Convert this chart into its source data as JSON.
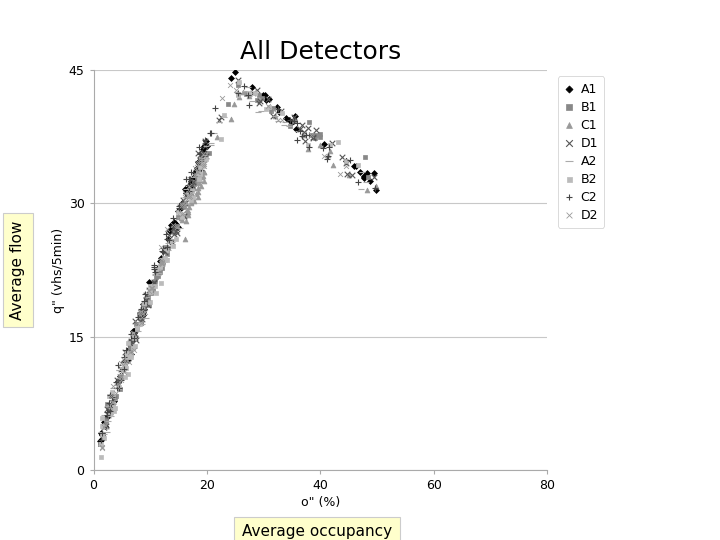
{
  "title": "All Detectors",
  "xlabel": "o\" (%)",
  "ylabel": "q\" (vhs/5min)",
  "ylabel_outer": "Average flow",
  "xlabel_outer": "Average occupancy",
  "xlim": [
    0,
    80
  ],
  "ylim": [
    0,
    45
  ],
  "xticks": [
    0,
    20,
    40,
    60,
    80
  ],
  "yticks": [
    0,
    15,
    30,
    45
  ],
  "background_color": "#ffffff",
  "grid_color": "#c8c8c8",
  "title_fontsize": 18,
  "axis_label_fontsize": 9,
  "outer_label_fontsize": 11,
  "tick_fontsize": 9,
  "legend_fontsize": 9,
  "series": [
    {
      "label": "A1",
      "marker": "D",
      "color": "#000000",
      "ms": 3,
      "mew": 0.5,
      "occ_range": [
        1,
        50
      ],
      "noise": 0.5,
      "n": 100,
      "occ_crit": 25,
      "q_max": 44.5,
      "q_min": 32
    },
    {
      "label": "B1",
      "marker": "s",
      "color": "#888888",
      "ms": 3.5,
      "mew": 0.5,
      "occ_range": [
        1,
        50
      ],
      "noise": 0.6,
      "n": 90,
      "occ_crit": 25,
      "q_max": 43.5,
      "q_min": 33
    },
    {
      "label": "C1",
      "marker": "^",
      "color": "#999999",
      "ms": 3.5,
      "mew": 0.5,
      "occ_range": [
        15,
        50
      ],
      "noise": 0.7,
      "n": 55,
      "occ_crit": 26,
      "q_max": 43.0,
      "q_min": 31
    },
    {
      "label": "D1",
      "marker": "x",
      "color": "#555555",
      "ms": 4,
      "mew": 0.8,
      "occ_range": [
        1,
        50
      ],
      "noise": 0.6,
      "n": 85,
      "occ_crit": 25,
      "q_max": 44.0,
      "q_min": 32
    },
    {
      "label": "A2",
      "marker": "_",
      "color": "#aaaaaa",
      "ms": 5,
      "mew": 0.8,
      "occ_range": [
        1,
        50
      ],
      "noise": 0.7,
      "n": 85,
      "occ_crit": 25,
      "q_max": 43.5,
      "q_min": 32
    },
    {
      "label": "B2",
      "marker": "s",
      "color": "#bbbbbb",
      "ms": 3,
      "mew": 0.5,
      "occ_range": [
        1,
        50
      ],
      "noise": 0.8,
      "n": 80,
      "occ_crit": 25,
      "q_max": 43.0,
      "q_min": 33
    },
    {
      "label": "C2",
      "marker": "+",
      "color": "#444444",
      "ms": 4,
      "mew": 0.8,
      "occ_range": [
        1,
        50
      ],
      "noise": 0.6,
      "n": 75,
      "occ_crit": 24,
      "q_max": 44.0,
      "q_min": 32
    },
    {
      "label": "D2",
      "marker": "x",
      "color": "#999999",
      "ms": 3.5,
      "mew": 0.6,
      "occ_range": [
        1,
        50
      ],
      "noise": 0.8,
      "n": 75,
      "occ_crit": 25,
      "q_max": 43.5,
      "q_min": 31
    }
  ]
}
